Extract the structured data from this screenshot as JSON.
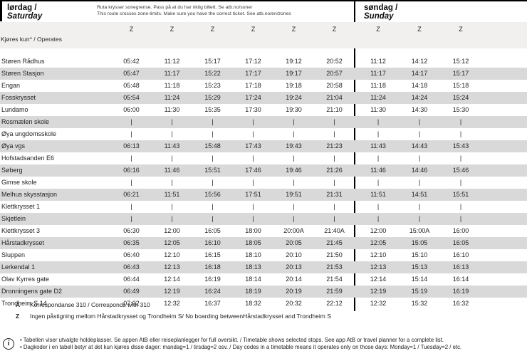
{
  "header": {
    "saturday_title_no": "lørdag /",
    "saturday_title_en": "Saturday",
    "sunday_title_no": "søndag /",
    "sunday_title_en": "Sunday",
    "zone_note_no": "Ruta krysser sonegrense. Pass på at du har riktig billett. Se atb.no/soner",
    "zone_note_en": "This route crosses zone-limits. Make sure you have the correct ticket. See atb.no/en/zones",
    "operates_label": "Kjøres kun* / Operates",
    "saturday_codes": [
      "Z",
      "Z",
      "Z",
      "Z",
      "Z",
      "Z"
    ],
    "sunday_codes": [
      "Z",
      "Z",
      "Z"
    ]
  },
  "timetable": {
    "stops": [
      {
        "name": "Støren Rådhus",
        "saturday": [
          "05:42",
          "11:12",
          "15:17",
          "17:12",
          "19:12",
          "20:52"
        ],
        "sunday": [
          "11:12",
          "14:12",
          "15:12"
        ]
      },
      {
        "name": "Støren Stasjon",
        "saturday": [
          "05:47",
          "11:17",
          "15:22",
          "17:17",
          "19:17",
          "20:57"
        ],
        "sunday": [
          "11:17",
          "14:17",
          "15:17"
        ]
      },
      {
        "name": "Engan",
        "saturday": [
          "05:48",
          "11:18",
          "15:23",
          "17:18",
          "19:18",
          "20:58"
        ],
        "sunday": [
          "11:18",
          "14:18",
          "15:18"
        ]
      },
      {
        "name": "Fosskrysset",
        "saturday": [
          "05:54",
          "11:24",
          "15:29",
          "17:24",
          "19:24",
          "21:04"
        ],
        "sunday": [
          "11:24",
          "14:24",
          "15:24"
        ]
      },
      {
        "name": "Lundamo",
        "saturday": [
          "06:00",
          "11:30",
          "15:35",
          "17:30",
          "19:30",
          "21:10"
        ],
        "sunday": [
          "11:30",
          "14:30",
          "15:30"
        ]
      },
      {
        "name": "Rosmælen skole",
        "saturday": [
          "|",
          "|",
          "|",
          "|",
          "|",
          "|"
        ],
        "sunday": [
          "|",
          "|",
          "|"
        ]
      },
      {
        "name": "Øya ungdomsskole",
        "saturday": [
          "|",
          "|",
          "|",
          "|",
          "|",
          "|"
        ],
        "sunday": [
          "|",
          "|",
          "|"
        ]
      },
      {
        "name": "Øya vgs",
        "saturday": [
          "06:13",
          "11:43",
          "15:48",
          "17:43",
          "19:43",
          "21:23"
        ],
        "sunday": [
          "11:43",
          "14:43",
          "15:43"
        ]
      },
      {
        "name": "Hofstadsanden E6",
        "saturday": [
          "|",
          "|",
          "|",
          "|",
          "|",
          "|"
        ],
        "sunday": [
          "|",
          "|",
          "|"
        ]
      },
      {
        "name": "Søberg",
        "saturday": [
          "06:16",
          "11:46",
          "15:51",
          "17:46",
          "19:46",
          "21:26"
        ],
        "sunday": [
          "11:46",
          "14:46",
          "15:46"
        ]
      },
      {
        "name": "Gimse skole",
        "saturday": [
          "|",
          "|",
          "|",
          "|",
          "|",
          "|"
        ],
        "sunday": [
          "|",
          "|",
          "|"
        ]
      },
      {
        "name": "Melhus skysstasjon",
        "saturday": [
          "06:21",
          "11:51",
          "15:56",
          "17:51",
          "19:51",
          "21:31"
        ],
        "sunday": [
          "11:51",
          "14:51",
          "15:51"
        ]
      },
      {
        "name": "Klettkrysset 1",
        "saturday": [
          "|",
          "|",
          "|",
          "|",
          "|",
          "|"
        ],
        "sunday": [
          "|",
          "|",
          "|"
        ]
      },
      {
        "name": "Skjetlein",
        "saturday": [
          "|",
          "|",
          "|",
          "|",
          "|",
          "|"
        ],
        "sunday": [
          "|",
          "|",
          "|"
        ]
      },
      {
        "name": "Klettkrysset 3",
        "saturday": [
          "06:30",
          "12:00",
          "16:05",
          "18:00",
          "20:00A",
          "21:40A"
        ],
        "sunday": [
          "12:00",
          "15:00A",
          "16:00"
        ]
      },
      {
        "name": "Hårstadkrysset",
        "saturday": [
          "06:35",
          "12:05",
          "16:10",
          "18:05",
          "20:05",
          "21:45"
        ],
        "sunday": [
          "12:05",
          "15:05",
          "16:05"
        ]
      },
      {
        "name": "Sluppen",
        "saturday": [
          "06:40",
          "12:10",
          "16:15",
          "18:10",
          "20:10",
          "21:50"
        ],
        "sunday": [
          "12:10",
          "15:10",
          "16:10"
        ]
      },
      {
        "name": "Lerkendal 1",
        "saturday": [
          "06:43",
          "12:13",
          "16:18",
          "18:13",
          "20:13",
          "21:53"
        ],
        "sunday": [
          "12:13",
          "15:13",
          "16:13"
        ]
      },
      {
        "name": "Olav Kyrres gate",
        "saturday": [
          "06:44",
          "12:14",
          "16:19",
          "18:14",
          "20:14",
          "21:54"
        ],
        "sunday": [
          "12:14",
          "15:14",
          "16:14"
        ]
      },
      {
        "name": "Dronningens gate D2",
        "saturday": [
          "06:49",
          "12:19",
          "16:24",
          "18:19",
          "20:19",
          "21:59"
        ],
        "sunday": [
          "12:19",
          "15:19",
          "16:19"
        ]
      },
      {
        "name": "Trondheim S 14",
        "saturday": [
          "07:02",
          "12:32",
          "16:37",
          "18:32",
          "20:32",
          "22:12"
        ],
        "sunday": [
          "12:32",
          "15:32",
          "16:32"
        ]
      }
    ]
  },
  "footnotes": [
    {
      "code": "A",
      "text": "Korrespondanse 310 / Corresponds with 310"
    },
    {
      "code": "Z",
      "text": "Ingen påstigning mellom Hårstadkrysset og Trondheim S/ No boarding betweenHårstadkrysset and Trondheim S"
    }
  ],
  "info": {
    "icon_glyph": "i",
    "lines": [
      "• Tabellen viser utvalgte holdeplasser. Se appen AtB eller reiseplanlegger for full oversikt.  / Timetable shows selected stops. See app AtB or travel planner for a complete list.",
      "• Dagkoder i en tabell betyr at det kun kjøres disse dager: mandag=1 / tirsdag=2 osv. / Day codes in a timetable means it operates only on those days: Monday=1 / Tuesday=2 / etc."
    ]
  },
  "colors": {
    "stripe": "#d9d9d9",
    "band": "#f2f0ef",
    "rule": "#000000",
    "ink": "#232323"
  }
}
